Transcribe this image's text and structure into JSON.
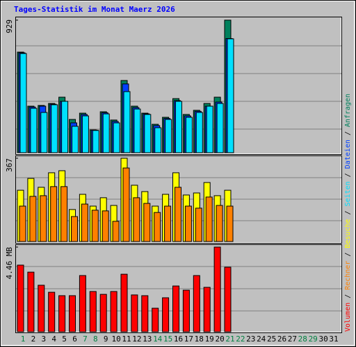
{
  "chart_data": [
    {
      "type": "bar",
      "title": "Tages-Statistik im Monat Maerz 2026",
      "categories": [
        "1",
        "2",
        "3",
        "4",
        "5",
        "6",
        "7",
        "8",
        "9",
        "10",
        "11",
        "12",
        "13",
        "14",
        "15",
        "16",
        "17",
        "18",
        "19",
        "20",
        "21",
        "22",
        "23",
        "24",
        "25",
        "26",
        "27",
        "28",
        "29",
        "30",
        "31"
      ],
      "category_colors": [
        "#008040",
        "#000000",
        "#000000",
        "#000000",
        "#000000",
        "#000000",
        "#008040",
        "#008040",
        "#000000",
        "#000000",
        "#000000",
        "#000000",
        "#000000",
        "#008040",
        "#008040",
        "#000000",
        "#000000",
        "#000000",
        "#000000",
        "#000000",
        "#008040",
        "#008040",
        "#000000",
        "#000000",
        "#000000",
        "#000000",
        "#000000",
        "#008040",
        "#008040",
        "#000000",
        "#000000"
      ],
      "legend_separator": "/",
      "ylim": [
        0,
        929
      ],
      "yticks": [
        929
      ],
      "series": [
        {
          "name": "Anfragen",
          "color": "#00805c",
          "values": [
            705,
            326,
            331,
            345,
            389,
            233,
            277,
            160,
            287,
            229,
            506,
            326,
            277,
            199,
            248,
            379,
            268,
            297,
            345,
            389,
            929,
            null,
            null,
            null,
            null,
            null,
            null,
            null,
            null,
            null,
            null
          ]
        },
        {
          "name": "Dateien",
          "color": "#0040ff",
          "values": [
            700,
            320,
            326,
            340,
            360,
            209,
            268,
            158,
            280,
            219,
            482,
            316,
            272,
            190,
            240,
            365,
            258,
            290,
            326,
            355,
            800,
            null,
            null,
            null,
            null,
            null,
            null,
            null,
            null,
            null,
            null
          ]
        },
        {
          "name": "Seiten",
          "color": "#00e0ff",
          "values": [
            695,
            311,
            282,
            336,
            360,
            185,
            258,
            156,
            272,
            209,
            428,
            306,
            268,
            175,
            233,
            360,
            248,
            282,
            326,
            345,
            798,
            null,
            null,
            null,
            null,
            null,
            null,
            null,
            null,
            null,
            null
          ]
        }
      ]
    },
    {
      "type": "bar",
      "ylim": [
        0,
        367
      ],
      "yticks": [
        367
      ],
      "series": [
        {
          "name": "Besuche",
          "color": "#ffff00",
          "values": [
            226,
            278,
            239,
            303,
            312,
            141,
            208,
            156,
            193,
            159,
            367,
            248,
            220,
            156,
            208,
            303,
            205,
            214,
            260,
            202,
            226,
            null,
            null,
            null,
            null,
            null,
            null,
            null,
            null,
            null,
            null
          ]
        },
        {
          "name": "Rechner",
          "color": "#ff8000",
          "values": [
            156,
            199,
            202,
            242,
            242,
            110,
            165,
            138,
            135,
            89,
            324,
            193,
            168,
            128,
            156,
            239,
            156,
            147,
            196,
            159,
            156,
            null,
            null,
            null,
            null,
            null,
            null,
            null,
            null,
            null,
            null
          ]
        }
      ]
    },
    {
      "type": "bar",
      "ylim": [
        0,
        4.46
      ],
      "yticks": [
        {
          "value": 4.46,
          "label": "4.46 MB"
        }
      ],
      "series": [
        {
          "name": "Volumen",
          "color": "#ff0000",
          "values": [
            3.51,
            3.14,
            2.45,
            2.08,
            1.9,
            1.9,
            2.96,
            2.12,
            1.97,
            2.12,
            3.03,
            1.94,
            1.9,
            1.24,
            1.79,
            2.41,
            2.19,
            2.96,
            2.34,
            4.46,
            3.4,
            null,
            null,
            null,
            null,
            null,
            null,
            null,
            null,
            null,
            null
          ]
        }
      ]
    }
  ]
}
